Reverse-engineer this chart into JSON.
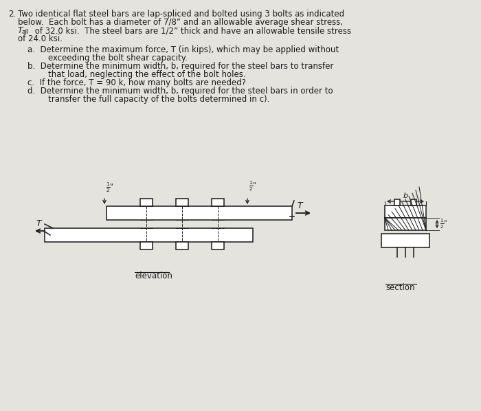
{
  "bg_color": "#e5e3de",
  "text_color": "#1a1a1a",
  "fig_width": 7.0,
  "fig_height": 5.98,
  "dpi": 100,
  "problem_number": "2.",
  "line1": "Two identical flat steel bars are lap-spliced and bolted using 3 bolts as indicated",
  "line2": "below.  Each bolt has a diameter of 7/8” and an allowable average shear stress,",
  "line3a": "T",
  "line3b": "all",
  "line3c": " of 32.0 ksi.  The steel bars are 1/2” thick and have an allowable tensile stress",
  "line4": "of 24.0 ksi.",
  "sub_a1": "a.  Determine the maximum force, T (in kips), which may be applied without",
  "sub_a2": "exceeding the bolt shear capacity.",
  "sub_b1": "b.  Determine the minimum width, b, required for the steel bars to transfer",
  "sub_b2": "that load, neglecting the effect of the bolt holes.",
  "sub_c": "c.  If the force, T = 90 k, how many bolts are needed?",
  "sub_d1": "d.  Determine the minimum width, b, required for the steel bars in order to",
  "sub_d2": "transfer the full capacity of the bolts determined in c).",
  "elevation_label": "elevation",
  "section_label": "section"
}
